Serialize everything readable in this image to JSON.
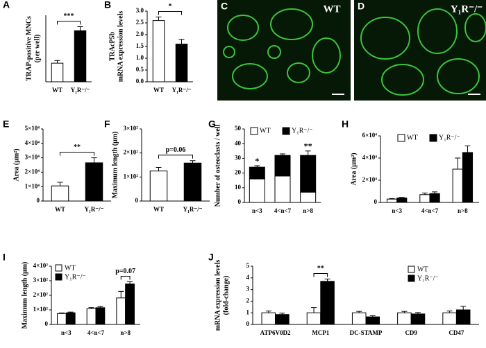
{
  "chart_data": [
    {
      "type": "bar",
      "panel": "A",
      "ylabel": [
        "TRAP-positive MNCs",
        "(per well)"
      ],
      "categories": [
        "WT",
        "Y₁R⁻/⁻"
      ],
      "values": [
        70,
        192
      ],
      "errors": [
        10,
        15
      ],
      "colors": [
        "#ffffff",
        "#000000"
      ],
      "ylim": [
        0,
        250
      ],
      "annotations": [
        {
          "text": "***"
        }
      ]
    },
    {
      "type": "bar",
      "panel": "B",
      "ylabel": [
        "TRAcP5b",
        "mRNA expression levels"
      ],
      "categories": [
        "WT",
        "Y₁R⁻/⁻"
      ],
      "values": [
        2.6,
        1.6
      ],
      "errors": [
        0.15,
        0.2
      ],
      "colors": [
        "#ffffff",
        "#000000"
      ],
      "ylim": [
        0,
        3
      ],
      "yticks": [
        {
          "value": 0,
          "label": "0.0"
        },
        0.5,
        {
          "value": 1,
          "label": "1.0"
        },
        1.5,
        {
          "value": 2,
          "label": "2.0"
        },
        2.5,
        {
          "value": 3,
          "label": "3.0"
        }
      ],
      "annotations": [
        {
          "text": "*"
        }
      ]
    },
    {
      "type": "bar",
      "panel": "E",
      "ylabel": [
        "Area (μm²)"
      ],
      "categories": [
        "WT",
        "Y₁R⁻/⁻"
      ],
      "values": [
        10500,
        26500
      ],
      "errors": [
        2500,
        3500
      ],
      "colors": [
        "#ffffff",
        "#000000"
      ],
      "ylim": [
        0,
        50000
      ],
      "yticks": [
        0,
        {
          "value": 10000,
          "label": "1×10⁴"
        },
        {
          "value": 20000,
          "label": "2×10⁴"
        },
        {
          "value": 30000,
          "label": "3×10⁴"
        },
        {
          "value": 40000,
          "label": "4×10⁴"
        },
        {
          "value": 50000,
          "label": "5×10⁴"
        }
      ],
      "annotations": [
        {
          "text": "**"
        }
      ]
    },
    {
      "type": "bar",
      "panel": "F",
      "ylabel": [
        "Maximum length (μm)"
      ],
      "categories": [
        "WT",
        "Y₁R⁻/⁻"
      ],
      "values": [
        125,
        158
      ],
      "errors": [
        15,
        10
      ],
      "colors": [
        "#ffffff",
        "#000000"
      ],
      "ylim": [
        0,
        300
      ],
      "yticks": [
        0,
        {
          "value": 100,
          "label": "1×10²"
        },
        {
          "value": 200,
          "label": "2×10²"
        },
        {
          "value": 300,
          "label": "3×10²"
        }
      ],
      "annotations": [
        {
          "text": "p=0.06"
        }
      ]
    },
    {
      "type": "bar",
      "panel": "G",
      "stacked": true,
      "ylabel": [
        "Number of osteoclasts / well"
      ],
      "categories": [
        "n<3",
        "4<n<7",
        "n>8"
      ],
      "series": [
        {
          "name": "WT",
          "color": "#ffffff",
          "values": [
            16,
            18,
            7
          ]
        },
        {
          "name": "Y₁R⁻/⁻",
          "color": "#000000",
          "values": [
            8,
            14,
            25
          ],
          "errors": [
            1,
            1,
            3
          ]
        }
      ],
      "ylim": [
        0,
        50
      ],
      "yticks": [
        0,
        10,
        20,
        30,
        40,
        50
      ],
      "legend": "upper center",
      "annotations": [
        {
          "text": "*",
          "index": 0
        },
        {
          "text": "**",
          "index": 2
        }
      ]
    },
    {
      "type": "bar",
      "panel": "H",
      "ylabel": [
        "Area (μm²)"
      ],
      "categories": [
        "n<3",
        "4<n<7",
        "n>8"
      ],
      "series": [
        {
          "name": "WT",
          "color": "#ffffff",
          "values": [
            3000,
            7000,
            30000
          ],
          "errors": [
            500,
            1500,
            10000
          ]
        },
        {
          "name": "Y₁R⁻/⁻",
          "color": "#000000",
          "values": [
            4000,
            8000,
            45000
          ],
          "errors": [
            500,
            1500,
            6000
          ]
        }
      ],
      "ylim": [
        0,
        60000
      ],
      "yticks": [
        0,
        {
          "value": 20000,
          "label": "2×10⁴"
        },
        {
          "value": 40000,
          "label": "4×10⁴"
        },
        {
          "value": 60000,
          "label": "6×10⁴"
        }
      ],
      "legend": "upper center"
    },
    {
      "type": "bar",
      "panel": "I",
      "ylabel": [
        "Maximum length (μm)"
      ],
      "categories": [
        "n<3",
        "4<n<7",
        "n>8"
      ],
      "series": [
        {
          "name": "WT",
          "color": "#ffffff",
          "values": [
            75,
            108,
            182
          ],
          "errors": [
            4,
            8,
            45
          ]
        },
        {
          "name": "Y₁R⁻/⁻",
          "color": "#000000",
          "values": [
            80,
            115,
            278
          ],
          "errors": [
            5,
            8,
            15
          ]
        }
      ],
      "ylim": [
        0,
        400
      ],
      "yticks": [
        0,
        {
          "value": 100,
          "label": "1×10²"
        },
        {
          "value": 200,
          "label": "2×10²"
        },
        {
          "value": 300,
          "label": "3×10²"
        },
        {
          "value": 400,
          "label": "4×10²"
        }
      ],
      "legend": "upper left",
      "annotations": [
        {
          "text": "p=0.07",
          "index": 2
        }
      ]
    },
    {
      "type": "bar",
      "panel": "J",
      "ylabel": [
        "mRNA expression levels",
        "(fold-change)"
      ],
      "categories": [
        "ATP6V0D2",
        "MCP1",
        "DC-STAMP",
        "CD9",
        "CD47"
      ],
      "series": [
        {
          "name": "WT",
          "color": "#ffffff",
          "values": [
            1,
            1,
            1,
            1,
            1
          ],
          "errors": [
            0.15,
            0.45,
            0.12,
            0.12,
            0.15
          ]
        },
        {
          "name": "Y₁R⁻/⁻",
          "color": "#000000",
          "values": [
            0.85,
            3.7,
            0.65,
            0.9,
            1.25
          ],
          "errors": [
            0.12,
            0.2,
            0.1,
            0.12,
            0.3
          ]
        }
      ],
      "ylim": [
        0,
        5
      ],
      "yticks": [
        0,
        1,
        2,
        3,
        4,
        5
      ],
      "legend": "upper right",
      "annotations": [
        {
          "text": "**",
          "index": 1
        }
      ]
    }
  ],
  "images": [
    {
      "panel": "C",
      "label": "WT"
    },
    {
      "panel": "D",
      "label": "Y₁R⁻/⁻"
    }
  ]
}
